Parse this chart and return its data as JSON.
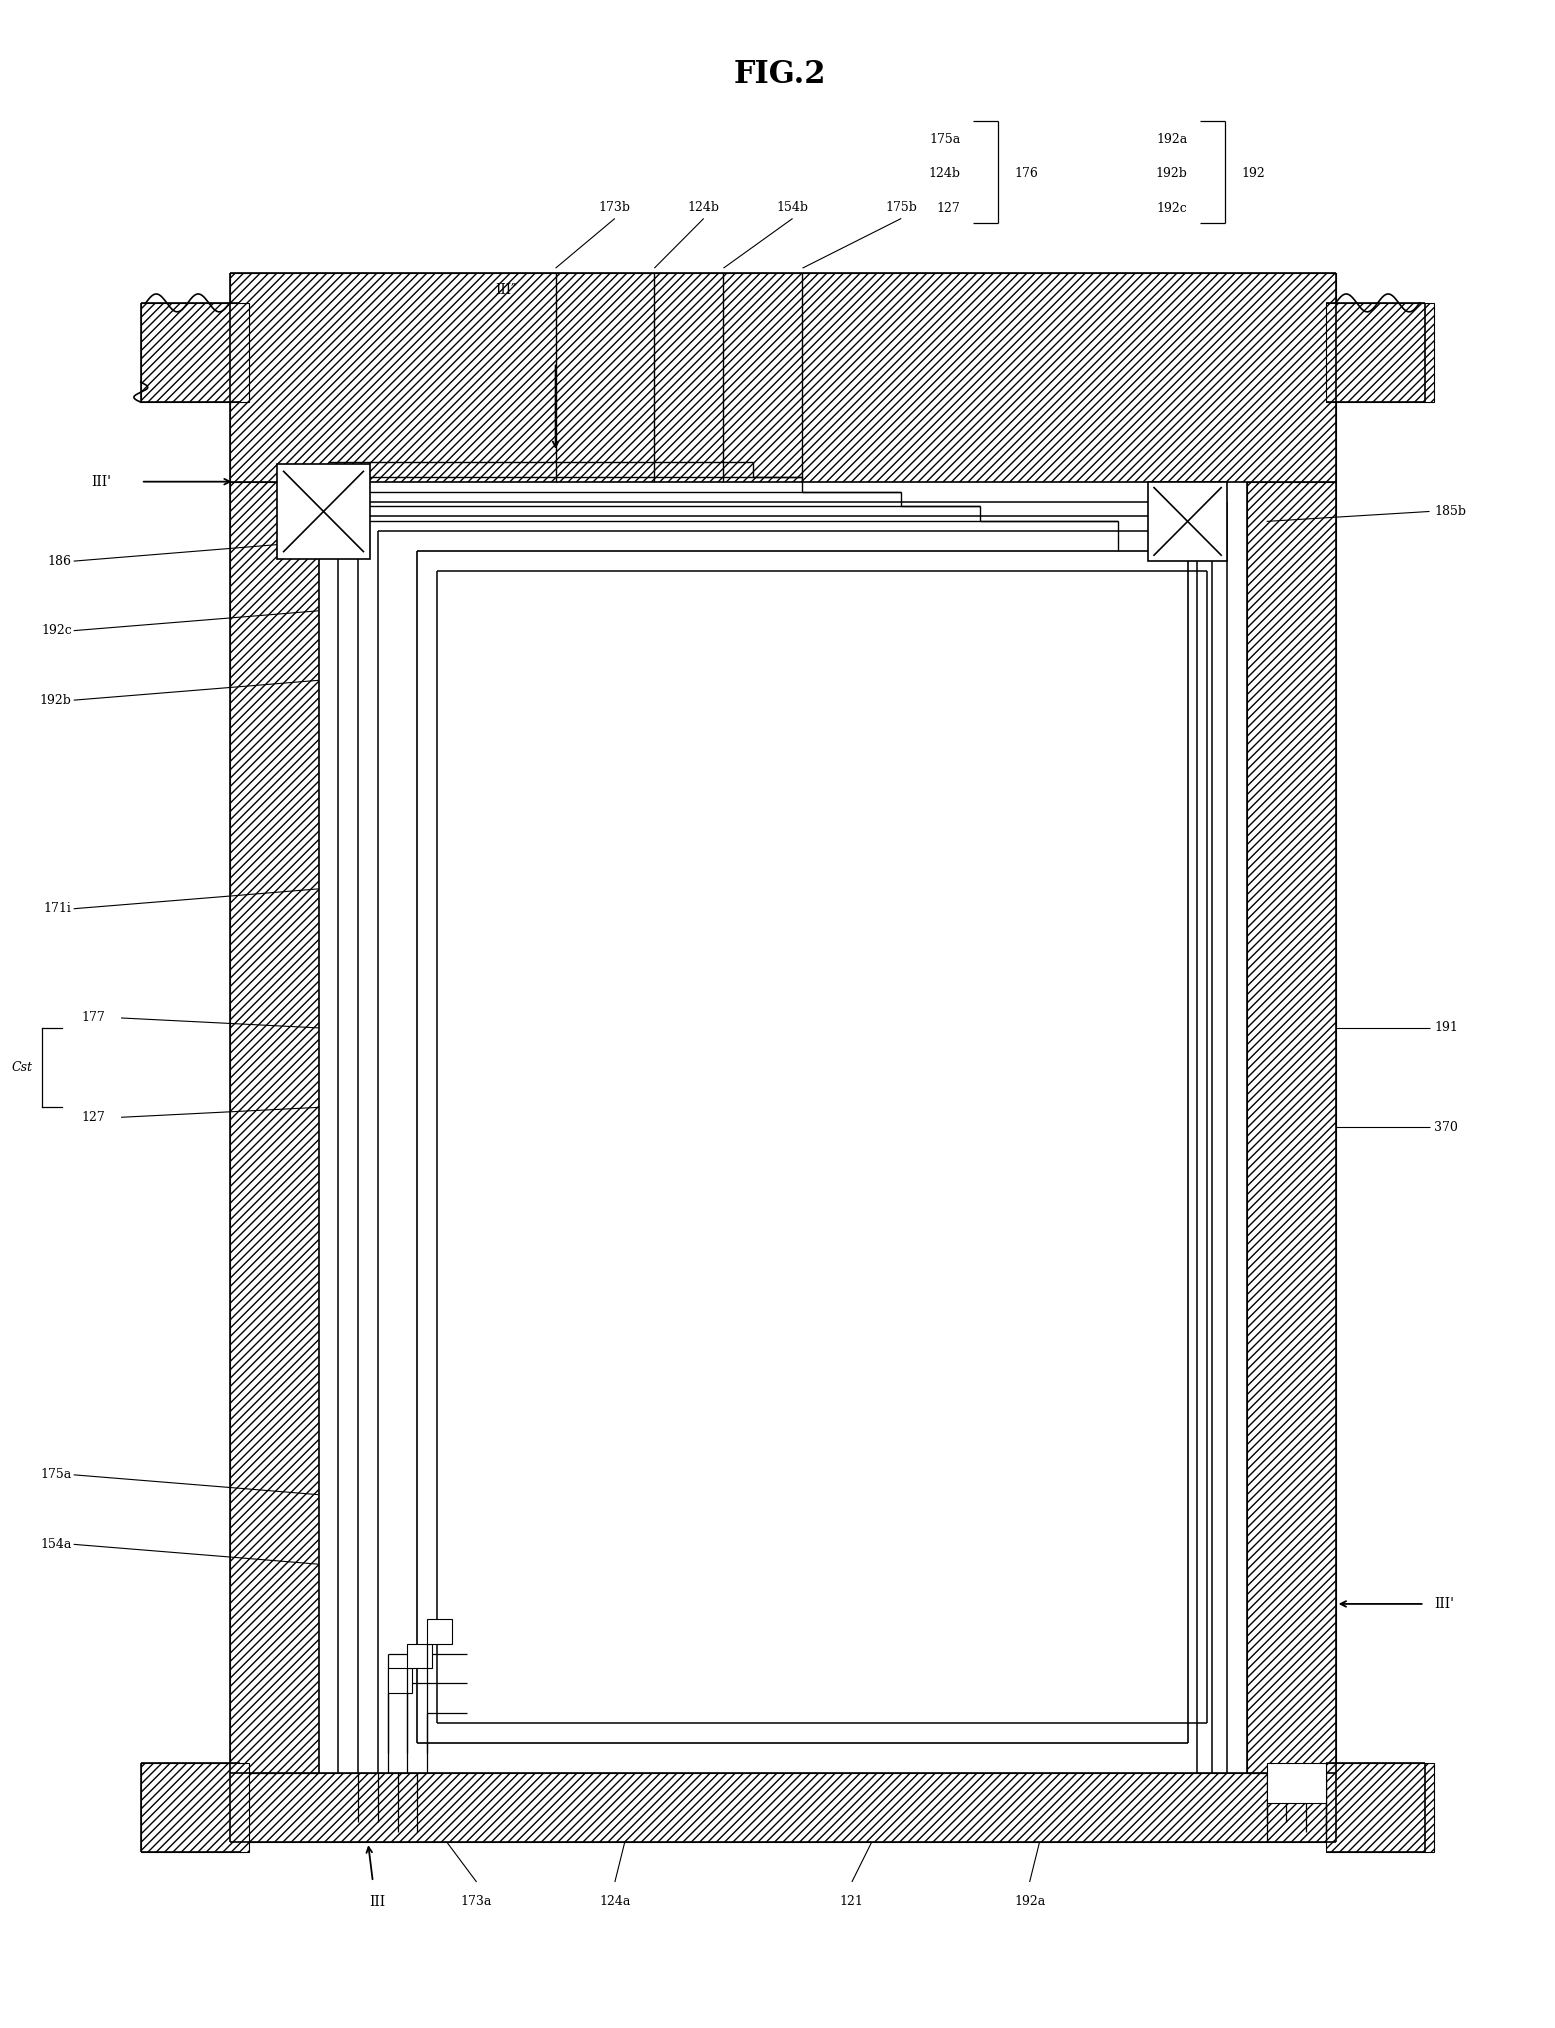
{
  "title": "FIG.2",
  "bg_color": "#ffffff",
  "line_color": "#000000",
  "fig_width": 15.55,
  "fig_height": 20.28,
  "legend_group1_labels": [
    "175a",
    "124b",
    "127"
  ],
  "legend_group1_bracket": "176",
  "legend_group2_labels": [
    "192a",
    "192b",
    "192c"
  ],
  "legend_group2_bracket": "192",
  "cst_label": "Cst"
}
